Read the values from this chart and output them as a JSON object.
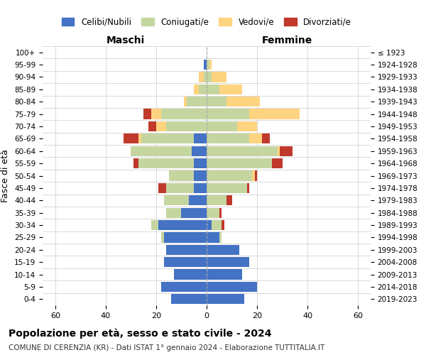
{
  "age_groups": [
    "0-4",
    "5-9",
    "10-14",
    "15-19",
    "20-24",
    "25-29",
    "30-34",
    "35-39",
    "40-44",
    "45-49",
    "50-54",
    "55-59",
    "60-64",
    "65-69",
    "70-74",
    "75-79",
    "80-84",
    "85-89",
    "90-94",
    "95-99",
    "100+"
  ],
  "birth_years": [
    "2019-2023",
    "2014-2018",
    "2009-2013",
    "2004-2008",
    "1999-2003",
    "1994-1998",
    "1989-1993",
    "1984-1988",
    "1979-1983",
    "1974-1978",
    "1969-1973",
    "1964-1968",
    "1959-1963",
    "1954-1958",
    "1949-1953",
    "1944-1948",
    "1939-1943",
    "1934-1938",
    "1929-1933",
    "1924-1928",
    "≤ 1923"
  ],
  "colors": {
    "celibe": "#4472C4",
    "coniugato": "#C5D5A0",
    "vedovo": "#FFD480",
    "divorziato": "#C0392B"
  },
  "maschi": {
    "celibe": [
      14,
      18,
      13,
      17,
      16,
      17,
      19,
      10,
      7,
      5,
      5,
      5,
      6,
      5,
      0,
      0,
      0,
      0,
      0,
      1,
      0
    ],
    "coniugato": [
      0,
      0,
      0,
      0,
      0,
      1,
      3,
      6,
      10,
      11,
      10,
      22,
      24,
      21,
      16,
      18,
      8,
      3,
      1,
      0,
      0
    ],
    "vedovo": [
      0,
      0,
      0,
      0,
      0,
      0,
      0,
      0,
      0,
      0,
      0,
      0,
      0,
      1,
      4,
      4,
      1,
      2,
      2,
      0,
      0
    ],
    "divorziato": [
      0,
      0,
      0,
      0,
      0,
      0,
      0,
      0,
      0,
      3,
      0,
      2,
      0,
      6,
      3,
      3,
      0,
      0,
      0,
      0,
      0
    ]
  },
  "femmine": {
    "nubile": [
      15,
      20,
      14,
      17,
      13,
      5,
      2,
      0,
      0,
      0,
      0,
      0,
      0,
      0,
      0,
      0,
      0,
      0,
      0,
      0,
      0
    ],
    "coniugata": [
      0,
      0,
      0,
      0,
      0,
      1,
      4,
      5,
      8,
      16,
      18,
      26,
      28,
      17,
      12,
      17,
      8,
      5,
      2,
      1,
      0
    ],
    "vedova": [
      0,
      0,
      0,
      0,
      0,
      0,
      0,
      0,
      0,
      0,
      1,
      0,
      1,
      5,
      8,
      20,
      13,
      9,
      6,
      1,
      0
    ],
    "divorziata": [
      0,
      0,
      0,
      0,
      0,
      0,
      1,
      1,
      2,
      1,
      1,
      4,
      5,
      3,
      0,
      0,
      0,
      0,
      0,
      0,
      0
    ]
  },
  "title1": "Popolazione per età, sesso e stato civile - 2024",
  "title2": "COMUNE DI CERENZIA (KR) - Dati ISTAT 1° gennaio 2024 - Elaborazione TUTTITALIA.IT",
  "xlabel_left": "Maschi",
  "xlabel_right": "Femmine",
  "ylabel": "Fasce di età",
  "legend_labels": [
    "Celibi/Nubili",
    "Coniugati/e",
    "Vedovi/e",
    "Divorziati/e"
  ],
  "xlim": 65,
  "bg_color": "#FFFFFF",
  "grid_color": "#CCCCCC"
}
